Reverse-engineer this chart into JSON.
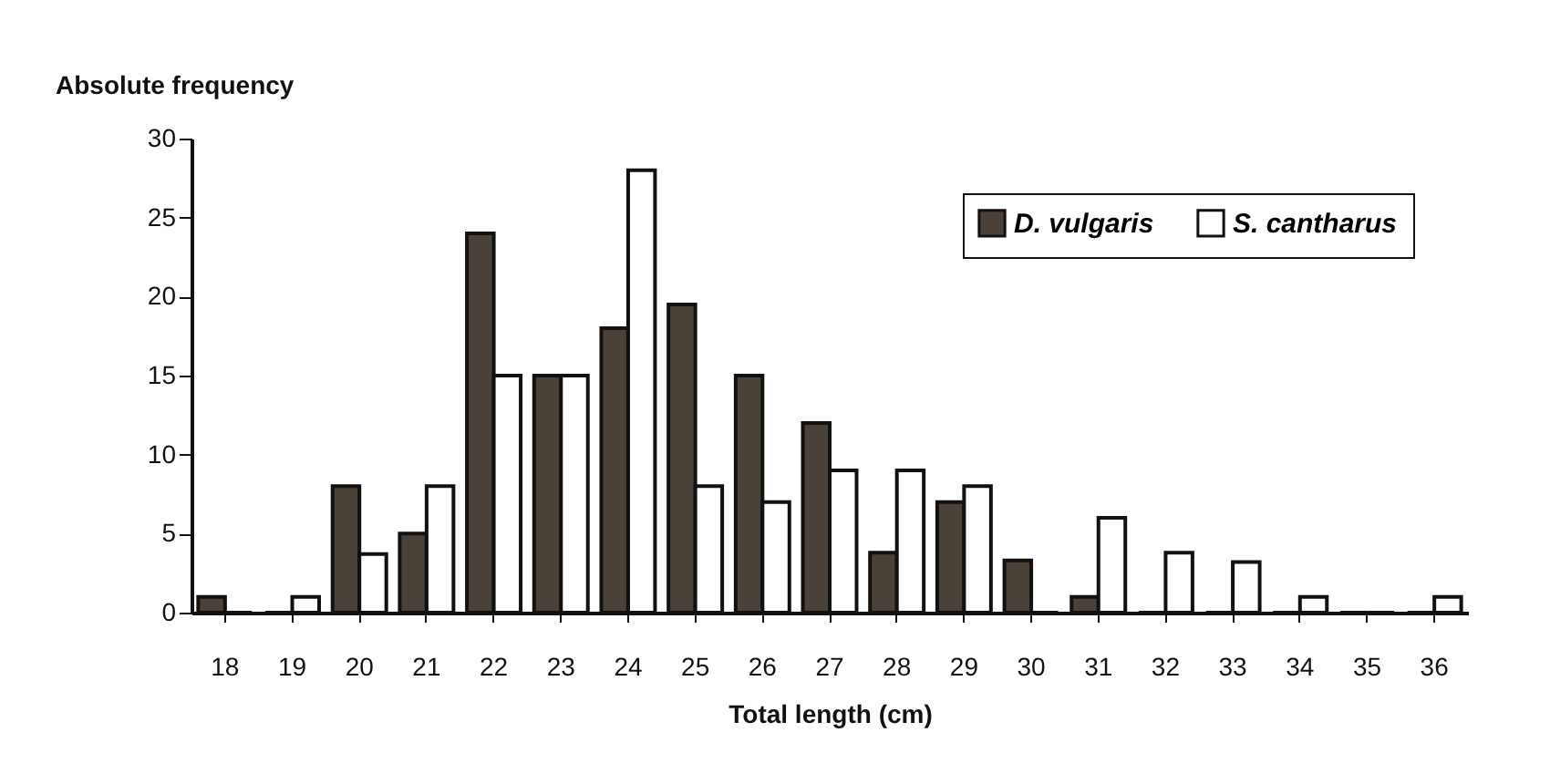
{
  "chart_data": {
    "type": "bar",
    "xlabel": "Total length (cm)",
    "ylabel": "Absolute frequency",
    "categories": [
      "18",
      "19",
      "20",
      "21",
      "22",
      "23",
      "24",
      "25",
      "26",
      "27",
      "28",
      "29",
      "30",
      "31",
      "32",
      "33",
      "34",
      "35",
      "36"
    ],
    "series": [
      {
        "name": "D. vulgaris",
        "color": "#4a4238",
        "values": [
          1,
          0,
          8,
          5,
          24,
          15,
          18,
          19.5,
          15,
          12,
          3.8,
          7,
          3.3,
          1,
          0,
          0,
          0,
          0,
          0
        ]
      },
      {
        "name": "S. cantharus",
        "color": "#ffffff",
        "values": [
          0,
          1,
          3.7,
          8,
          15,
          15,
          28,
          8,
          7,
          9,
          9,
          8,
          0,
          6,
          3.8,
          3.2,
          1,
          0,
          1
        ]
      }
    ],
    "ylim": [
      0,
      30
    ],
    "yticks": [
      0,
      5,
      10,
      15,
      20,
      25,
      30
    ],
    "grid": false,
    "legend": "top right"
  }
}
